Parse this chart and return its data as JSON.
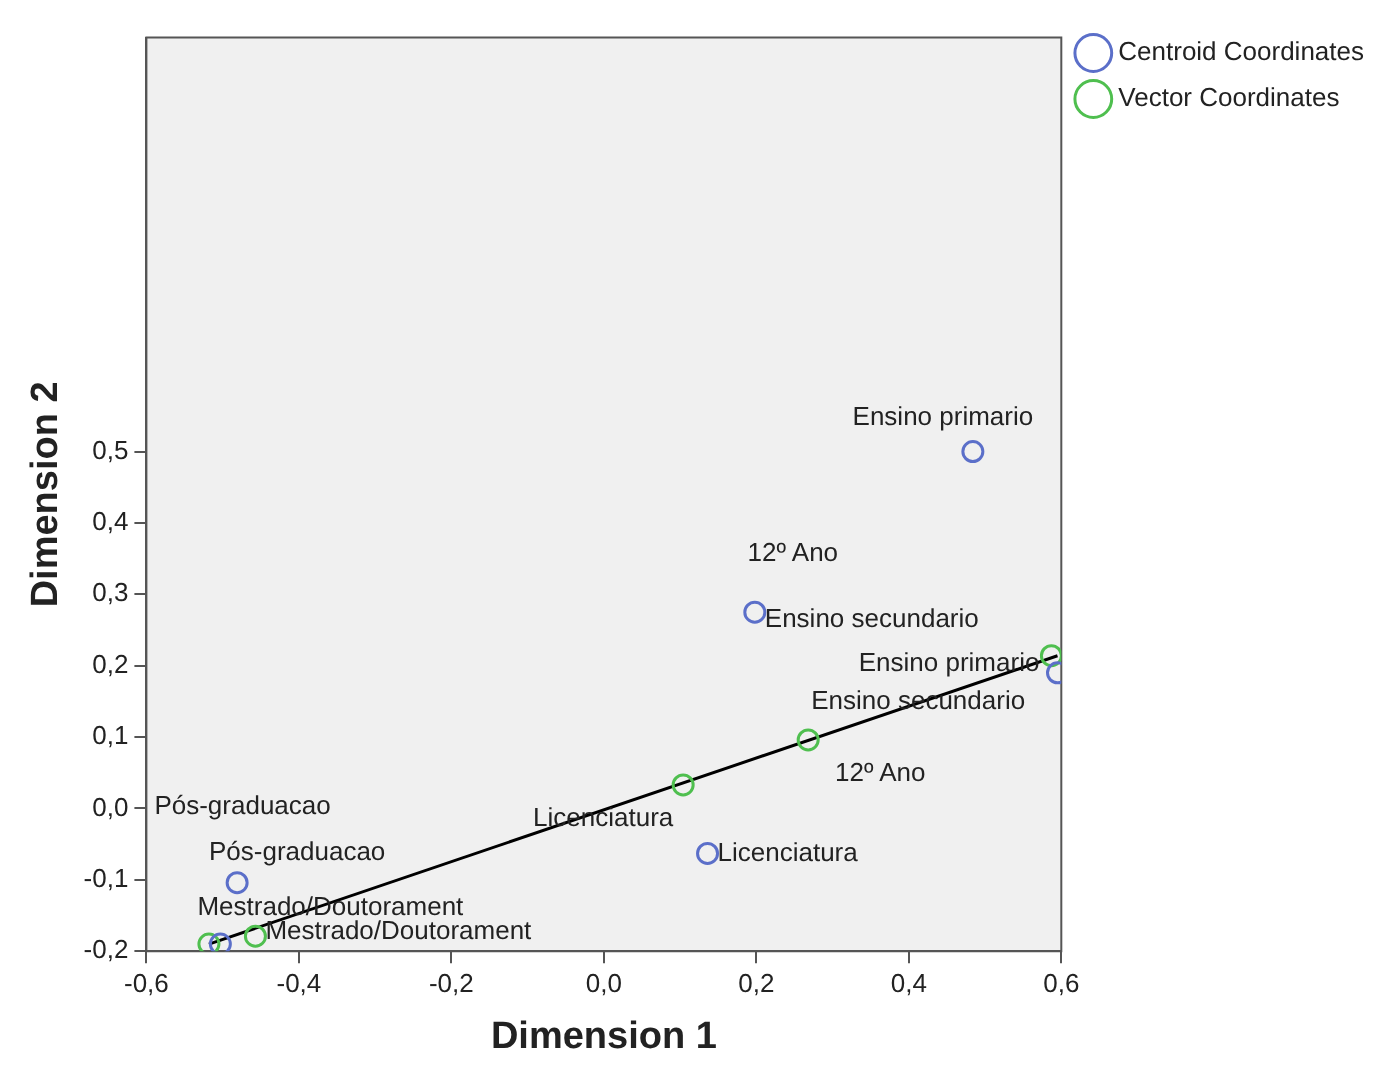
{
  "chart_data": {
    "type": "scatter",
    "xlabel": "Dimension 1",
    "ylabel": "Dimension 2",
    "legend": "top right",
    "grid": false,
    "marker": "circle",
    "xlim": [
      -0.6,
      0.6
    ],
    "ylim": [
      -0.2,
      1.08
    ],
    "xticks": [
      {
        "value": -0.6,
        "label": "-0,6"
      },
      {
        "value": -0.4,
        "label": "-0,4"
      },
      {
        "value": -0.2,
        "label": "-0,2"
      },
      {
        "value": 0,
        "label": "0,0"
      },
      {
        "value": 0.2,
        "label": "0,2"
      },
      {
        "value": 0.4,
        "label": "0,4"
      },
      {
        "value": 0.6,
        "label": "0,6"
      }
    ],
    "yticks": [
      {
        "value": -0.2,
        "label": "-0,2"
      },
      {
        "value": -0.1,
        "label": "-0,1"
      },
      {
        "value": 0,
        "label": "0,0"
      },
      {
        "value": 0.1,
        "label": "0,1"
      },
      {
        "value": 0.2,
        "label": "0,2"
      },
      {
        "value": 0.3,
        "label": "0,3"
      },
      {
        "value": 0.4,
        "label": "0,4"
      },
      {
        "value": 0.5,
        "label": "0,5"
      }
    ],
    "series": [
      {
        "name": "Centroid Coordinates",
        "color": "#5b6fc9",
        "x": [
          0.484,
          0.198,
          0.595,
          0.136,
          -0.481,
          -0.503
        ],
        "values": [
          0.5,
          0.275,
          0.19,
          -0.063,
          -0.104,
          -0.19
        ]
      },
      {
        "name": "Vector Coordinates",
        "color": "#4fbf4f",
        "x": [
          0.587,
          0.268,
          0.104,
          -0.457,
          -0.518
        ],
        "values": [
          0.214,
          0.096,
          0.033,
          -0.179,
          -0.19
        ]
      },
      {
        "type": "line",
        "marker": "none",
        "color": "#000000",
        "x": [
          -0.518,
          0.595
        ],
        "values": [
          -0.19,
          0.214
        ]
      }
    ],
    "annotations": [
      {
        "text": "Ensino primario",
        "x": 0.484,
        "y": 0.5
      },
      {
        "text": "12º Ano",
        "x": 0.198,
        "y": 0.275
      },
      {
        "text": "Ensino secundario",
        "x": 0.198,
        "y": 0.275
      },
      {
        "text": "Licenciatura",
        "x": 0.136,
        "y": -0.063
      },
      {
        "text": "Pós-graduacao",
        "x": -0.481,
        "y": -0.104
      },
      {
        "text": "Mestrado/Doutorament",
        "x": -0.503,
        "y": -0.19
      },
      {
        "text": "Ensino primario",
        "x": 0.587,
        "y": 0.214
      },
      {
        "text": "Ensino secundario",
        "x": 0.268,
        "y": 0.096
      },
      {
        "text": "12º Ano",
        "x": 0.268,
        "y": 0.096
      },
      {
        "text": "Licenciatura",
        "x": 0.104,
        "y": 0.033
      },
      {
        "text": "Mestrado/Doutorament",
        "x": -0.457,
        "y": -0.179
      },
      "Pós-graduacao"
    ]
  }
}
